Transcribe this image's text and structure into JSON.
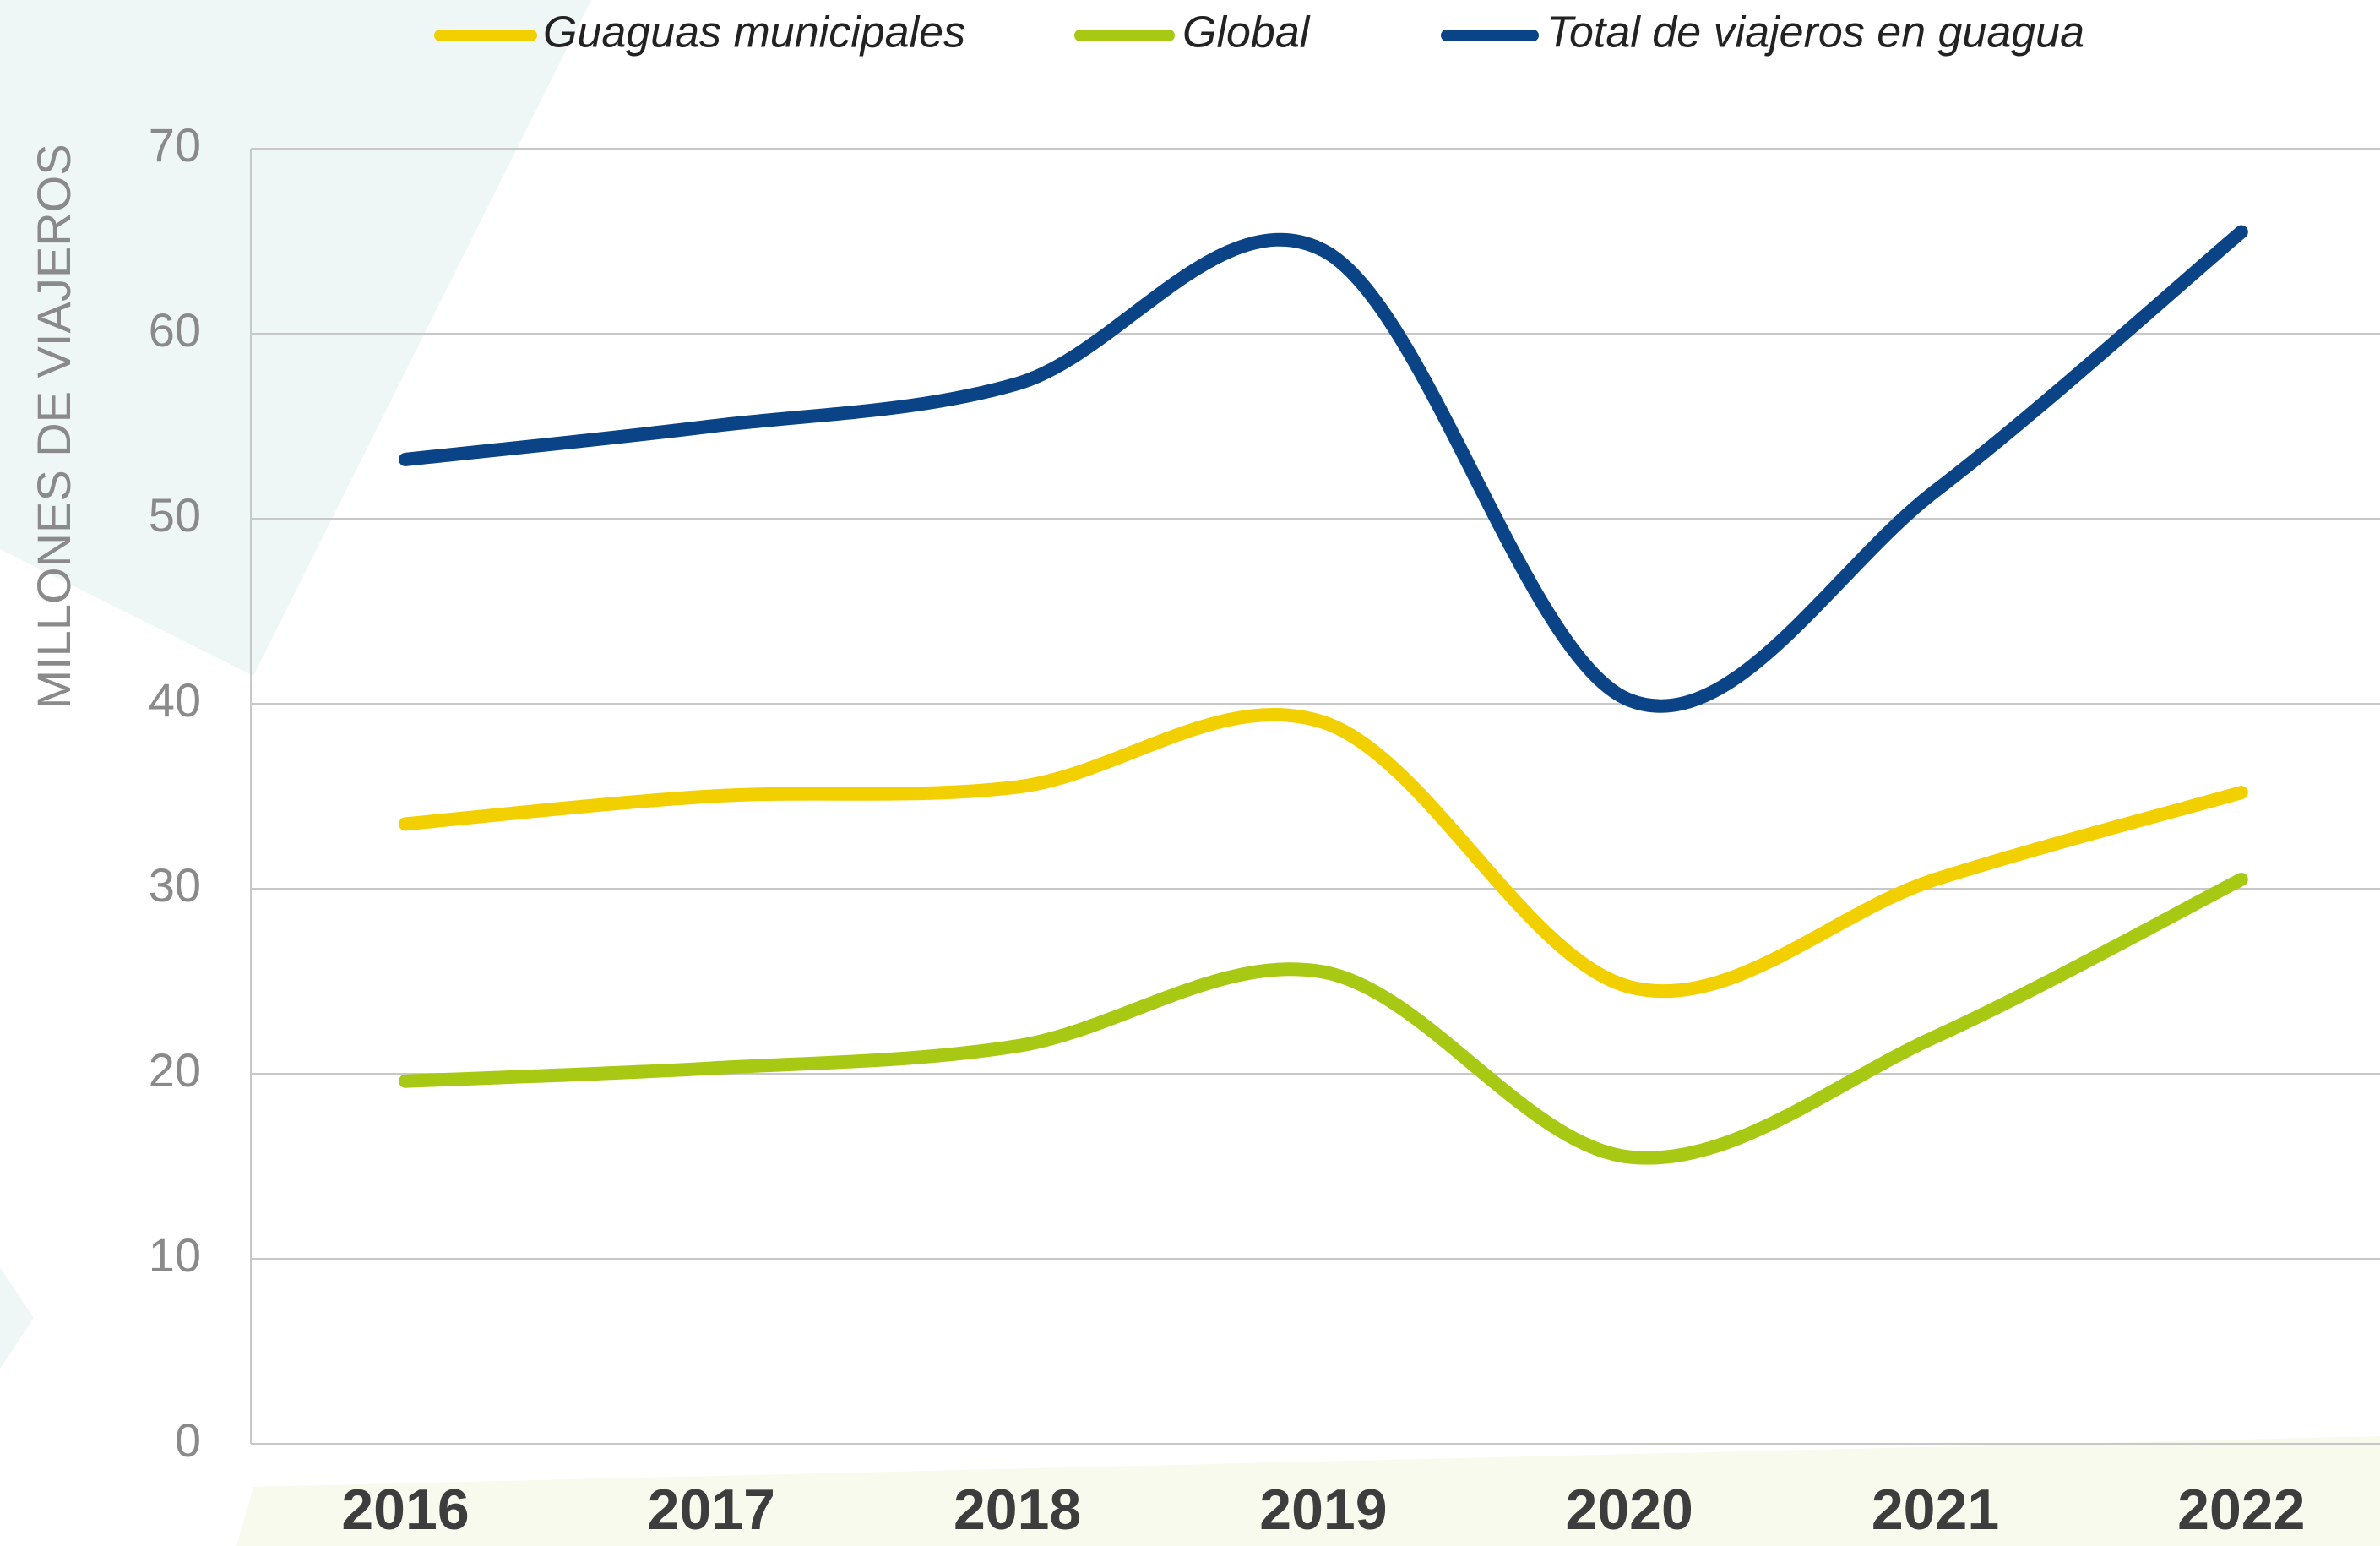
{
  "chart_data": {
    "type": "line",
    "y_axis_label": "MILLONES DE VIAJEROS",
    "categories": [
      "2016",
      "2017",
      "2018",
      "2019",
      "2020",
      "2021",
      "2022"
    ],
    "series": [
      {
        "name": "Guaguas municipales",
        "color": "#f2d000",
        "values": [
          33.5,
          35,
          35.5,
          39,
          24.7,
          30.5,
          35.2
        ]
      },
      {
        "name": "Global",
        "color": "#a7c914",
        "values": [
          19.6,
          20.3,
          21.5,
          25.5,
          15.5,
          22,
          30.5
        ]
      },
      {
        "name": "Total de viajeros en guagua",
        "color": "#0b4486",
        "values": [
          53.2,
          55,
          57.3,
          64.5,
          40.2,
          51.5,
          65.5
        ]
      }
    ],
    "ylim": [
      0,
      70
    ],
    "yticks": [
      0,
      10,
      20,
      30,
      40,
      50,
      60,
      70
    ],
    "grid": true,
    "legend": "top"
  }
}
